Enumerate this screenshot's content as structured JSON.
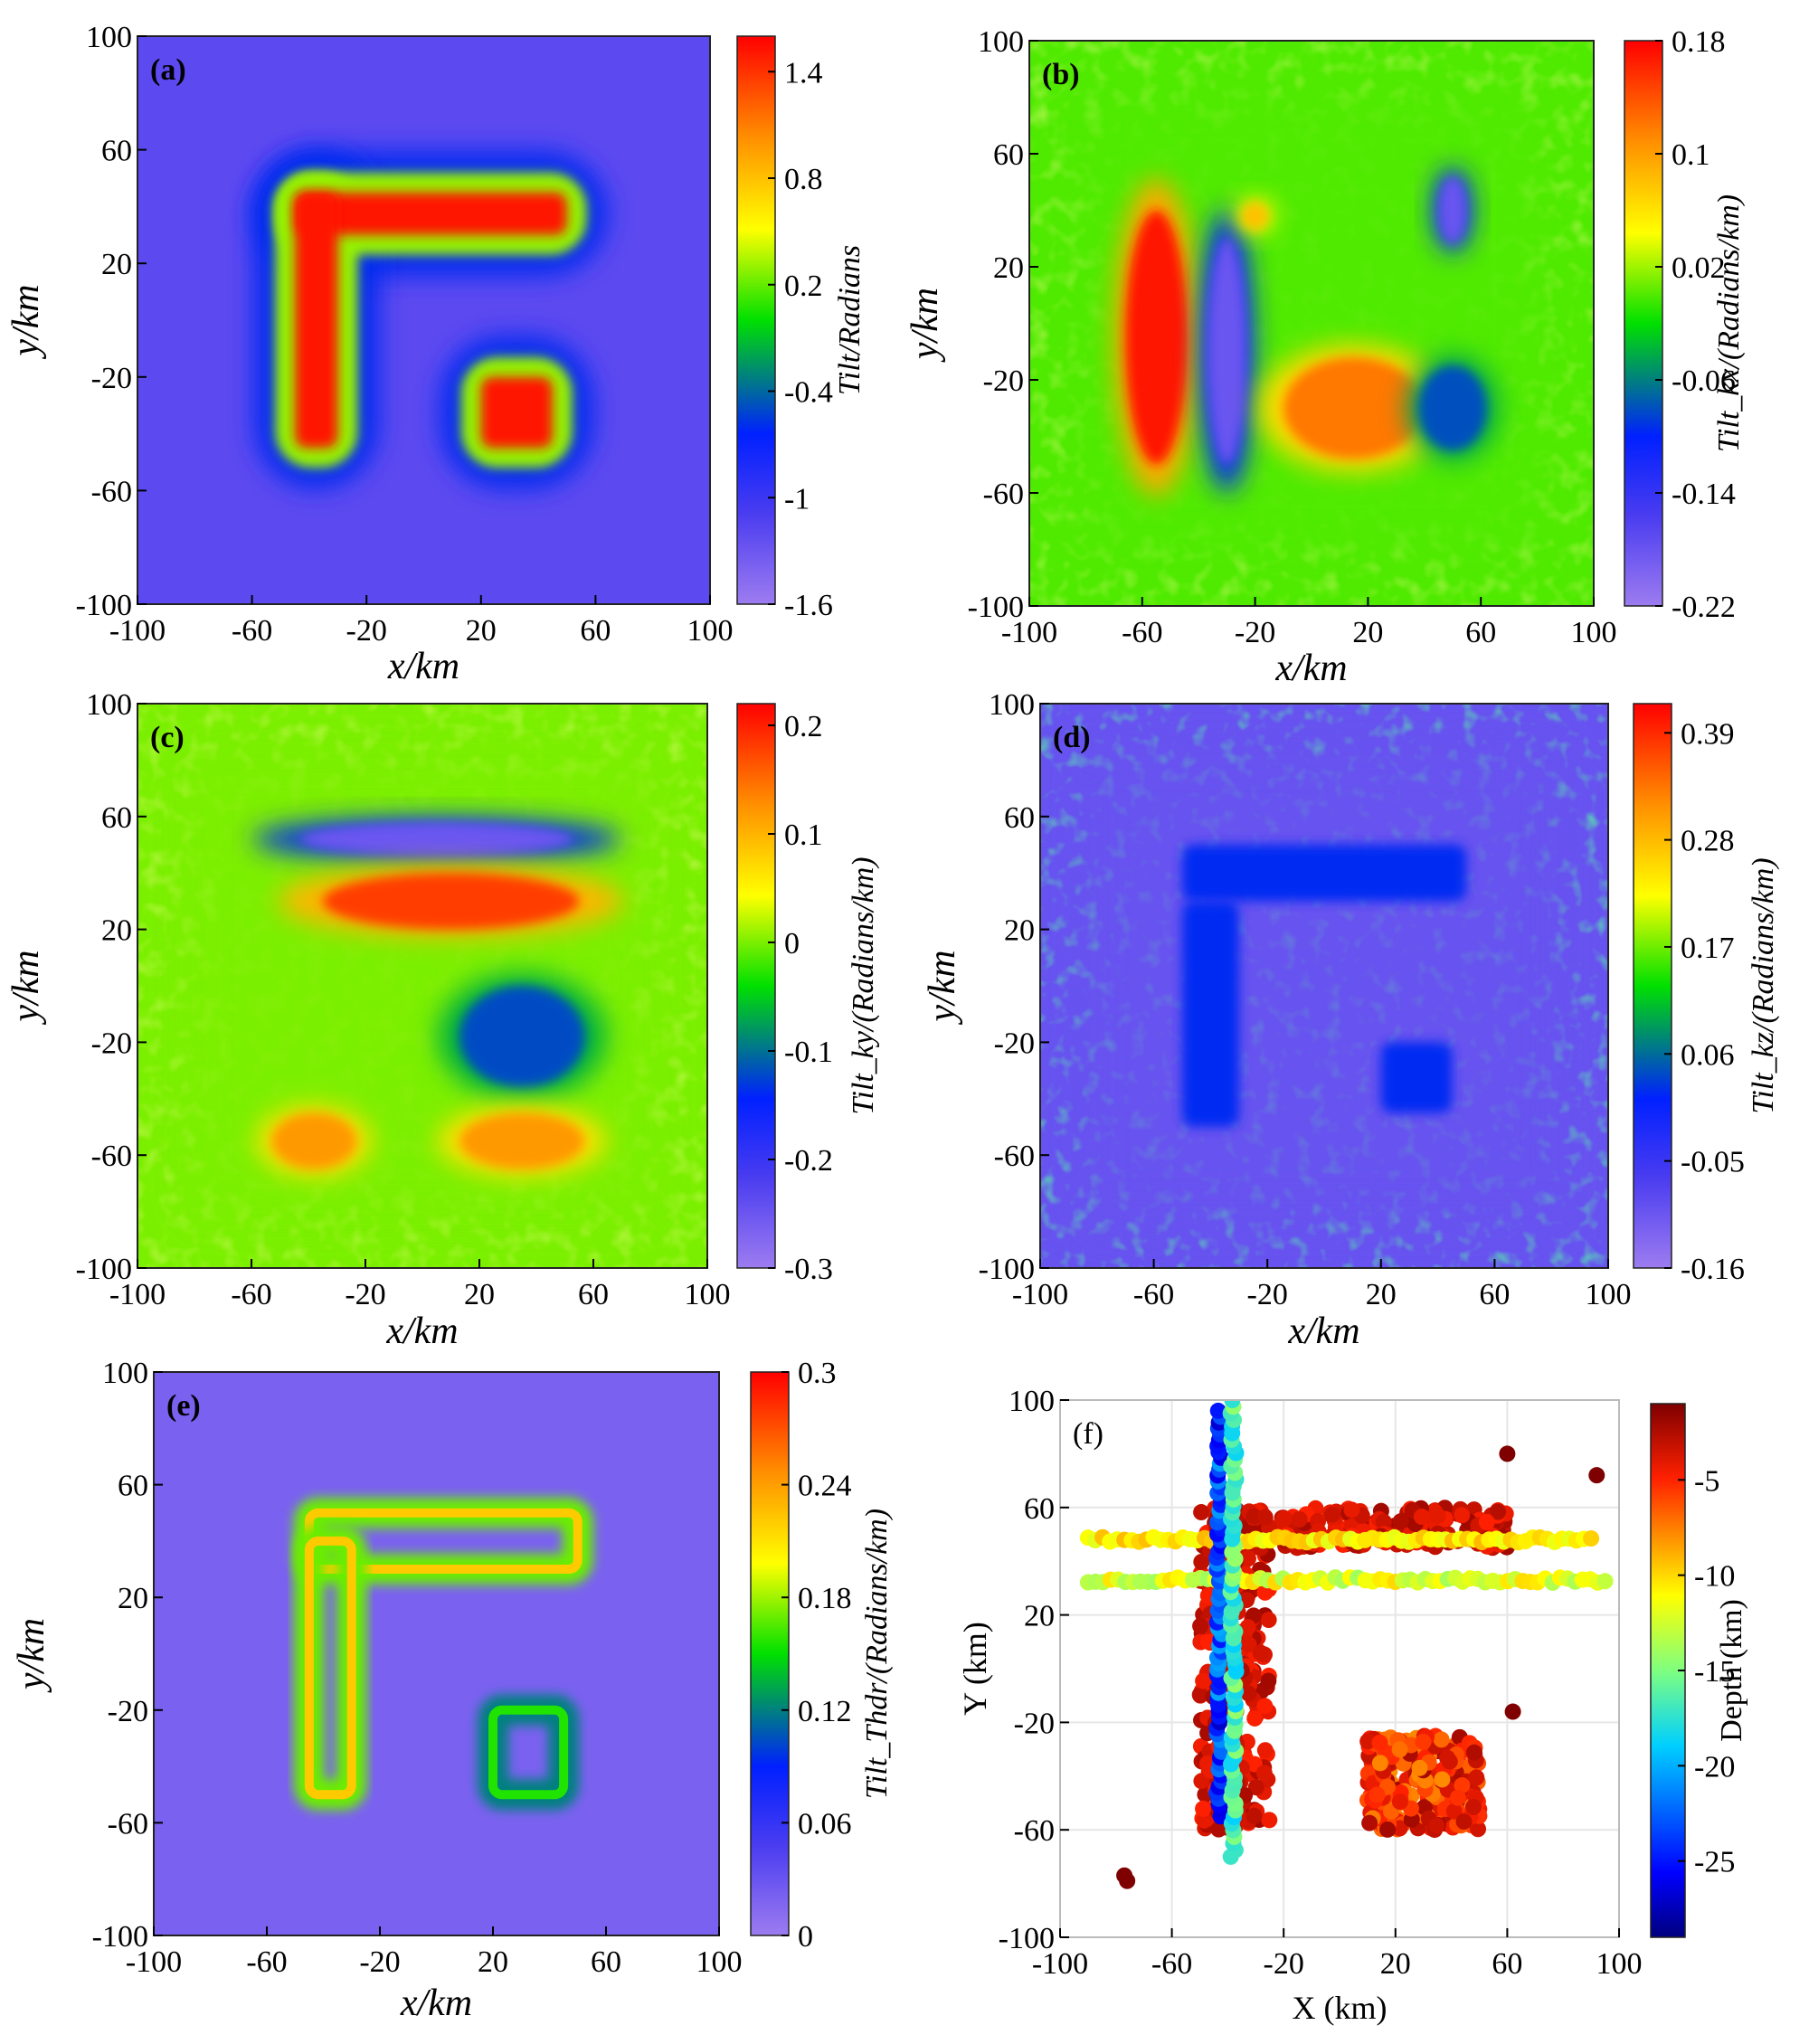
{
  "chart_data": [
    {
      "type": "heatmap",
      "panel": "(a)",
      "xlabel": "x/km",
      "ylabel": "y/km",
      "xlim": [
        -100,
        100
      ],
      "ylim": [
        -100,
        100
      ],
      "xticks": [
        "-100",
        "-60",
        "-20",
        "20",
        "60",
        "100"
      ],
      "yticks": [
        "100",
        "60",
        "20",
        "-20",
        "-60",
        "-100"
      ],
      "colorbar": {
        "label": "Tilt/Radians",
        "ticks": [
          "1.4",
          "0.8",
          "0.2",
          "-0.4",
          "-1",
          "-1.6"
        ],
        "range": [
          -1.6,
          1.6
        ],
        "colormap": "violet-blue-green-yellow-red"
      },
      "features": [
        {
          "shape": "rectangle",
          "x": [
            -45,
            50
          ],
          "y": [
            30,
            45
          ],
          "value": 1.5
        },
        {
          "shape": "rectangle",
          "x": [
            -45,
            -30
          ],
          "y": [
            -45,
            45
          ],
          "value": 1.5
        },
        {
          "shape": "rectangle",
          "x": [
            20,
            45
          ],
          "y": [
            -45,
            -20
          ],
          "value": 1.5
        }
      ],
      "background_value": -1.2
    },
    {
      "type": "heatmap",
      "panel": "(b)",
      "xlabel": "x/km",
      "ylabel": "y/km",
      "xlim": [
        -100,
        100
      ],
      "ylim": [
        -100,
        100
      ],
      "xticks": [
        "-100",
        "-60",
        "-20",
        "20",
        "60",
        "100"
      ],
      "yticks": [
        "100",
        "60",
        "20",
        "-20",
        "-60",
        "-100"
      ],
      "colorbar": {
        "label": "Tilt_kx/(Radians/km)",
        "ticks": [
          "0.18",
          "0.1",
          "0.02",
          "-0.06",
          "-0.14",
          "-0.22"
        ],
        "range": [
          -0.22,
          0.18
        ],
        "colormap": "violet-blue-green-yellow-red"
      },
      "features": [
        {
          "shape": "ellipse",
          "x": -55,
          "y": -5,
          "rx": 11,
          "ry": 45,
          "value": 0.17
        },
        {
          "shape": "ellipse",
          "x": -30,
          "y": -10,
          "rx": 7,
          "ry": 40,
          "value": -0.18
        },
        {
          "shape": "ellipse",
          "x": 15,
          "y": -30,
          "rx": 25,
          "ry": 18,
          "value": 0.12
        },
        {
          "shape": "ellipse",
          "x": 50,
          "y": -30,
          "rx": 12,
          "ry": 15,
          "value": -0.08
        },
        {
          "shape": "ellipse",
          "x": 50,
          "y": 40,
          "rx": 5,
          "ry": 12,
          "value": -0.18
        },
        {
          "shape": "ellipse",
          "x": -20,
          "y": 38,
          "rx": 5,
          "ry": 5,
          "value": 0.08
        }
      ],
      "background_value": 0.0
    },
    {
      "type": "heatmap",
      "panel": "(c)",
      "xlabel": "x/km",
      "ylabel": "y/km",
      "xlim": [
        -100,
        100
      ],
      "ylim": [
        -100,
        100
      ],
      "xticks": [
        "-100",
        "-60",
        "-20",
        "20",
        "60",
        "100"
      ],
      "yticks": [
        "100",
        "60",
        "20",
        "-20",
        "-60",
        "-100"
      ],
      "colorbar": {
        "label": "Tilt_ky/(Radians/km)",
        "ticks": [
          "0.2",
          "0.1",
          "0",
          "-0.1",
          "-0.2",
          "-0.3"
        ],
        "range": [
          -0.3,
          0.22
        ],
        "colormap": "violet-blue-green-yellow-red"
      },
      "features": [
        {
          "shape": "ellipse",
          "x": 5,
          "y": 52,
          "rx": 48,
          "ry": 6,
          "value": -0.25
        },
        {
          "shape": "ellipse",
          "x": 10,
          "y": 30,
          "rx": 45,
          "ry": 10,
          "value": 0.18
        },
        {
          "shape": "ellipse",
          "x": 35,
          "y": -18,
          "rx": 22,
          "ry": 18,
          "value": -0.12
        },
        {
          "shape": "ellipse",
          "x": -38,
          "y": -55,
          "rx": 15,
          "ry": 10,
          "value": 0.12
        },
        {
          "shape": "ellipse",
          "x": 35,
          "y": -55,
          "rx": 22,
          "ry": 10,
          "value": 0.12
        }
      ],
      "background_value": 0.0
    },
    {
      "type": "heatmap",
      "panel": "(d)",
      "xlabel": "x/km",
      "ylabel": "y/km",
      "xlim": [
        -100,
        100
      ],
      "ylim": [
        -100,
        100
      ],
      "xticks": [
        "-100",
        "-60",
        "-20",
        "20",
        "60",
        "100"
      ],
      "yticks": [
        "100",
        "60",
        "20",
        "-20",
        "-60",
        "-100"
      ],
      "colorbar": {
        "label": "Tilt_kz/(Radians/km)",
        "ticks": [
          "0.39",
          "0.28",
          "0.17",
          "0.06",
          "-0.05",
          "-0.16"
        ],
        "range": [
          -0.16,
          0.42
        ],
        "colormap": "violet-blue-green-yellow-red"
      },
      "features": [
        {
          "shape": "rectangle",
          "x": [
            -50,
            50
          ],
          "y": [
            30,
            50
          ],
          "value": 0.02
        },
        {
          "shape": "rectangle",
          "x": [
            -50,
            -30
          ],
          "y": [
            -50,
            30
          ],
          "value": 0.02
        },
        {
          "shape": "rectangle",
          "x": [
            20,
            45
          ],
          "y": [
            -45,
            -20
          ],
          "value": 0.02
        }
      ],
      "background_value": -0.1
    },
    {
      "type": "heatmap",
      "panel": "(e)",
      "xlabel": "x/km",
      "ylabel": "y/km",
      "xlim": [
        -100,
        100
      ],
      "ylim": [
        -100,
        100
      ],
      "xticks": [
        "-100",
        "-60",
        "-20",
        "20",
        "60",
        "100"
      ],
      "yticks": [
        "100",
        "60",
        "20",
        "-20",
        "-60",
        "-100"
      ],
      "colorbar": {
        "label": "Tilt_Thdr/(Radians/km)",
        "ticks": [
          "0.3",
          "0.24",
          "0.18",
          "0.12",
          "0.06",
          "0"
        ],
        "range": [
          0,
          0.3
        ],
        "colormap": "violet-blue-green-yellow-red"
      },
      "features": [
        {
          "shape": "rectangle-outline",
          "x": [
            -45,
            50
          ],
          "y": [
            30,
            50
          ],
          "value": 0.17
        },
        {
          "shape": "rectangle-outline",
          "x": [
            -45,
            -30
          ],
          "y": [
            -50,
            40
          ],
          "value": 0.17
        },
        {
          "shape": "rectangle-outline",
          "x": [
            20,
            45
          ],
          "y": [
            -50,
            -20
          ],
          "value": 0.12
        }
      ],
      "background_value": 0.02
    },
    {
      "type": "scatter",
      "panel": "(f)",
      "xlabel": "X (km)",
      "ylabel": "Y (km)",
      "xlim": [
        -100,
        100
      ],
      "ylim": [
        -100,
        100
      ],
      "xticks": [
        "-100",
        "-60",
        "-20",
        "20",
        "60",
        "100"
      ],
      "yticks": [
        "100",
        "60",
        "20",
        "-20",
        "-60",
        "-100"
      ],
      "grid": true,
      "colorbar": {
        "label": "Depth (km)",
        "ticks": [
          "-5",
          "-10",
          "-15",
          "-20",
          "-25"
        ],
        "range": [
          -29,
          -1
        ],
        "colormap": "jet"
      },
      "groups": [
        {
          "region": "horizontal bar",
          "x": [
            -45,
            60
          ],
          "y": [
            45,
            60
          ],
          "depth_range": [
            -2,
            -5
          ]
        },
        {
          "region": "vertical bar",
          "x": [
            -50,
            -25
          ],
          "y": [
            -60,
            60
          ],
          "depth_range": [
            -2,
            -5
          ]
        },
        {
          "region": "square",
          "x": [
            10,
            50
          ],
          "y": [
            -60,
            -25
          ],
          "depth_range": [
            -2,
            -8
          ]
        },
        {
          "region": "line y=48",
          "x": [
            -90,
            90
          ],
          "y": [
            48,
            48
          ],
          "depth_range": [
            -9,
            -12
          ]
        },
        {
          "region": "line y=33",
          "x": [
            -90,
            95
          ],
          "y": [
            33,
            33
          ],
          "depth_range": [
            -10,
            -14
          ]
        },
        {
          "region": "line x=-43",
          "x": [
            -43,
            -43
          ],
          "y": [
            -55,
            96
          ],
          "depth_range": [
            -20,
            -27
          ]
        },
        {
          "region": "line x=-38",
          "x": [
            -38,
            -38
          ],
          "y": [
            -70,
            100
          ],
          "depth_range": [
            -14,
            -19
          ]
        }
      ],
      "isolated_points": [
        {
          "x": 60,
          "y": 80,
          "depth": -1
        },
        {
          "x": 92,
          "y": 72,
          "depth": -1
        },
        {
          "x": 62,
          "y": -16,
          "depth": -1
        },
        {
          "x": -77,
          "y": -77,
          "depth": -1
        },
        {
          "x": -76,
          "y": -79,
          "depth": -1
        }
      ]
    }
  ]
}
